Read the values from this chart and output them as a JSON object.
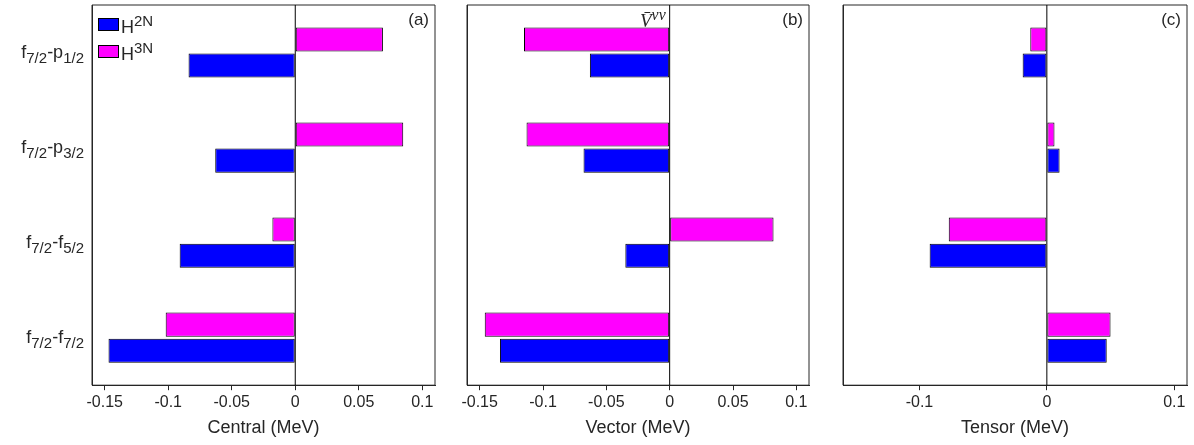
{
  "chart_data": [
    {
      "type": "bar",
      "orientation": "horizontal",
      "xlabel": "Central (MeV)",
      "categories": [
        "f$_{7/2}$-p$_{1/2}$",
        "f$_{7/2}$-p$_{3/2}$",
        "f$_{7/2}$-f$_{5/2}$",
        "f$_{7/2}$-f$_{7/2}$"
      ],
      "series": [
        {
          "name": "H$^{2N}$",
          "color": "#0000ff",
          "values": [
            -0.084,
            -0.063,
            -0.091,
            -0.147
          ]
        },
        {
          "name": "H$^{3N}$",
          "color": "#ff00ff",
          "values": [
            0.069,
            0.085,
            -0.018,
            -0.102
          ]
        }
      ],
      "xlim": [
        -0.16,
        0.11
      ],
      "xticks": [
        -0.15,
        -0.1,
        -0.05,
        0,
        0.05,
        0.1
      ],
      "legend": "top left",
      "annotations": [
        "(a)"
      ]
    },
    {
      "type": "bar",
      "orientation": "horizontal",
      "xlabel": "Vector (MeV)",
      "categories": [
        null,
        null,
        null,
        null
      ],
      "series": [
        {
          "color": "#0000ff",
          "values": [
            -0.063,
            -0.068,
            -0.035,
            -0.134
          ]
        },
        {
          "color": "#ff00ff",
          "values": [
            -0.115,
            -0.113,
            0.082,
            -0.146
          ]
        }
      ],
      "xlim": [
        -0.16,
        0.11
      ],
      "xticks": [
        -0.15,
        -0.1,
        -0.05,
        0,
        0.05,
        0.1
      ],
      "tick_labels": "x",
      "annotations": [
        "V̄$^{νν}$",
        "(b)"
      ]
    },
    {
      "type": "bar",
      "orientation": "horizontal",
      "xlabel": "Tensor (MeV)",
      "categories": [
        null,
        null,
        null,
        null
      ],
      "series": [
        {
          "color": "#0000ff",
          "values": [
            -0.019,
            0.01,
            -0.092,
            0.047
          ]
        },
        {
          "color": "#ff00ff",
          "values": [
            -0.013,
            0.006,
            -0.077,
            0.05
          ]
        }
      ],
      "xlim": [
        -0.16,
        0.11
      ],
      "xticks": [
        -0.1,
        0,
        0.1
      ],
      "tick_labels": "x",
      "annotations": [
        "(c)"
      ]
    }
  ]
}
